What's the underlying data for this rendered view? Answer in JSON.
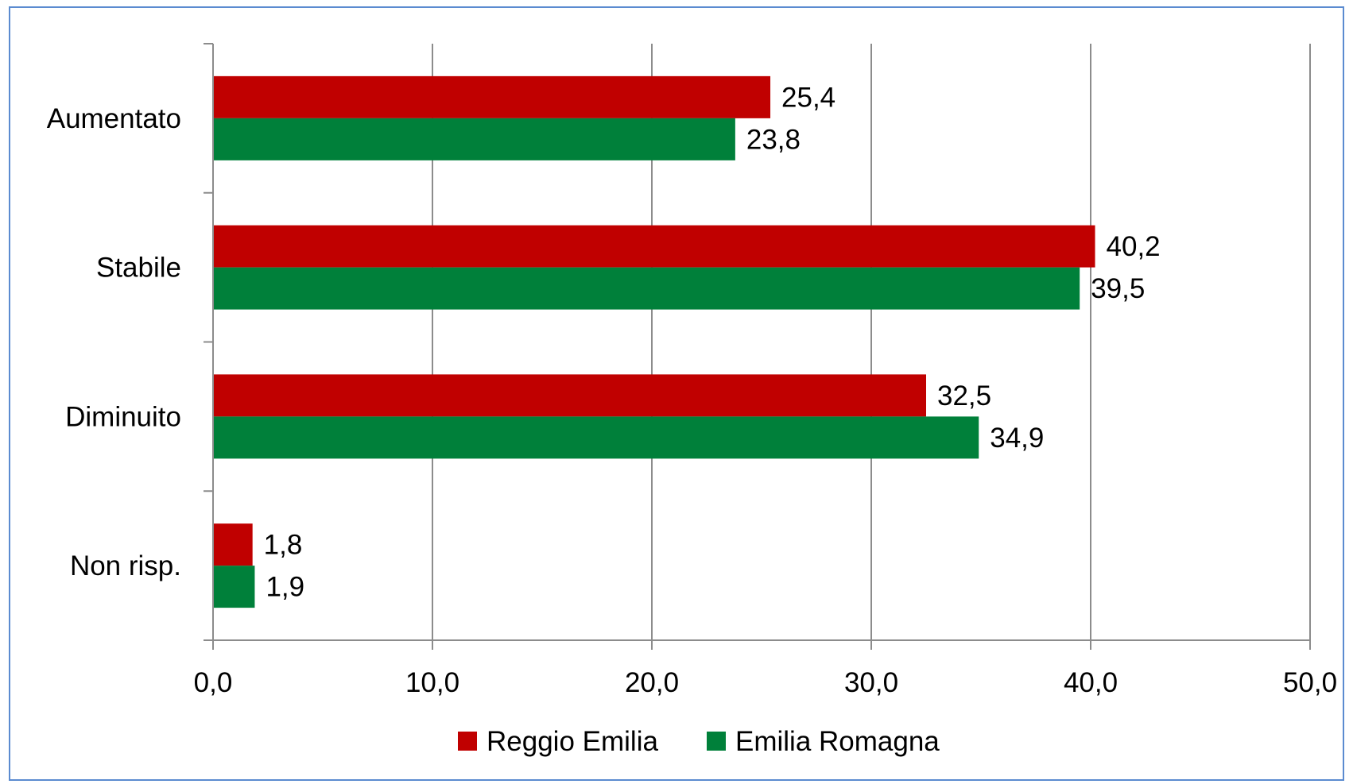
{
  "chart_data": {
    "type": "bar",
    "orientation": "horizontal",
    "categories": [
      "Aumentato",
      "Stabile",
      "Diminuito",
      "Non risp."
    ],
    "series": [
      {
        "name": "Reggio Emilia",
        "color": "#c00000",
        "values": [
          25.4,
          40.2,
          32.5,
          1.8
        ],
        "labels": [
          "25,4",
          "40,2",
          "32,5",
          "1,8"
        ]
      },
      {
        "name": "Emilia Romagna",
        "color": "#00803a",
        "values": [
          23.8,
          39.5,
          34.9,
          1.9
        ],
        "labels": [
          "23,8",
          "39,5",
          "34,9",
          "1,9"
        ]
      }
    ],
    "xlim": [
      0,
      50
    ],
    "x_ticks": [
      0,
      10,
      20,
      30,
      40,
      50
    ],
    "x_tick_labels": [
      "0,0",
      "10,0",
      "20,0",
      "30,0",
      "40,0",
      "50,0"
    ],
    "title": "",
    "xlabel": "",
    "ylabel": "",
    "grid": "vertical",
    "legend_position": "bottom",
    "colors": {
      "gridline": "#8c8c8c",
      "axis": "#8c8c8c",
      "border": "#5b8bd0"
    }
  }
}
